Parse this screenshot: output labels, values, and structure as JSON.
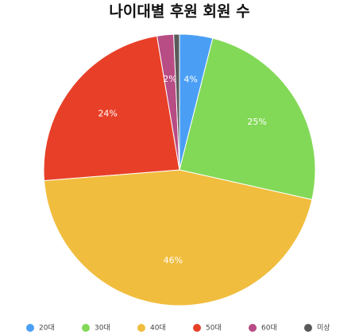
{
  "chart_data": {
    "type": "pie",
    "title": "나이대별 후원 회원 수",
    "categories": [
      "20대",
      "30대",
      "40대",
      "50대",
      "60대",
      "미상"
    ],
    "values": [
      4,
      25,
      46,
      24,
      2,
      0.7
    ],
    "value_labels": [
      "4%",
      "25%",
      "46%",
      "24%",
      "2%",
      null
    ],
    "colors": [
      "#4a9ff5",
      "#82d957",
      "#f0bd3e",
      "#e84028",
      "#b84c84",
      "#5a5a5a"
    ],
    "legend": "bottom"
  }
}
